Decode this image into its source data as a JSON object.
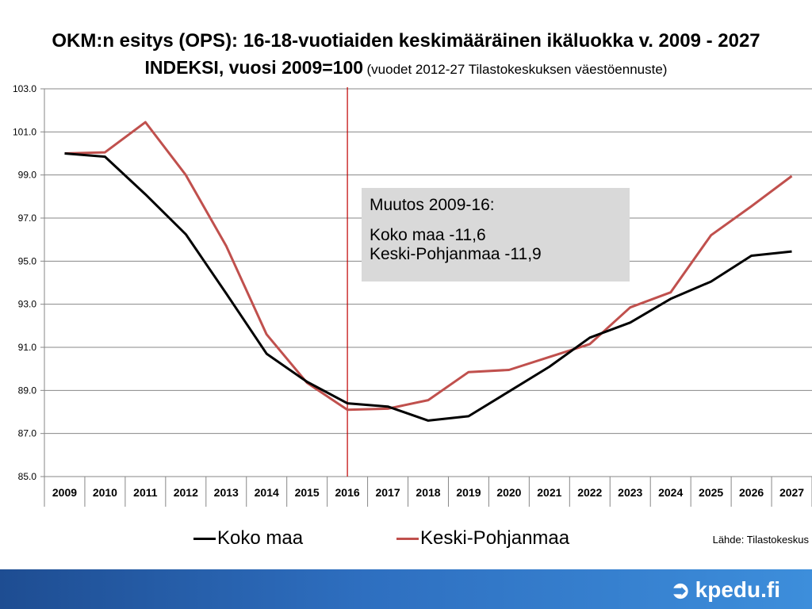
{
  "slide": {
    "title_line1": "OKM:n esitys (OPS):  16-18-vuotiaiden keskimääräinen ikäluokka v. 2009 - 2027",
    "title_line2_main": "INDEKSI, vuosi 2009=100",
    "title_line2_sub": "(vuodet 2012-27 Tilastokeskuksen väestöennuste)",
    "annotation_title": "Muutos 2009-16:",
    "annotation_line1": "Koko maa -11,6",
    "annotation_line2": "Keski-Pohjanmaa -11,9",
    "legend": [
      "Koko maa",
      "Keski-Pohjanmaa"
    ],
    "source": "Lähde: Tilastokeskus",
    "logo_text": "kpedu.fi"
  },
  "chart_data": {
    "type": "line",
    "x": [
      "2009",
      "2010",
      "2011",
      "2012",
      "2013",
      "2014",
      "2015",
      "2016",
      "2017",
      "2018",
      "2019",
      "2020",
      "2021",
      "2022",
      "2023",
      "2024",
      "2025",
      "2026",
      "2027"
    ],
    "series": [
      {
        "name": "Koko maa",
        "color": "#000000",
        "values": [
          100.0,
          99.85,
          98.1,
          96.25,
          93.5,
          90.7,
          89.4,
          88.4,
          88.25,
          87.6,
          87.8,
          88.95,
          90.1,
          91.45,
          92.15,
          93.25,
          94.05,
          95.25,
          95.45
        ]
      },
      {
        "name": "Keski-Pohjanmaa",
        "color": "#c0504d",
        "values": [
          100.0,
          100.05,
          101.45,
          99.0,
          95.7,
          91.6,
          89.35,
          88.1,
          88.15,
          88.55,
          89.85,
          89.95,
          90.55,
          91.15,
          92.85,
          93.55,
          96.2,
          97.55,
          98.95
        ]
      }
    ],
    "ylim": [
      85.0,
      103.0
    ],
    "yticks": [
      "85.0",
      "87.0",
      "89.0",
      "91.0",
      "93.0",
      "95.0",
      "97.0",
      "99.0",
      "101.0",
      "103.0"
    ],
    "gridlines": true,
    "marker_line_year": "2016",
    "marker_line_color": "#c00000",
    "legend_position": "bottom"
  }
}
